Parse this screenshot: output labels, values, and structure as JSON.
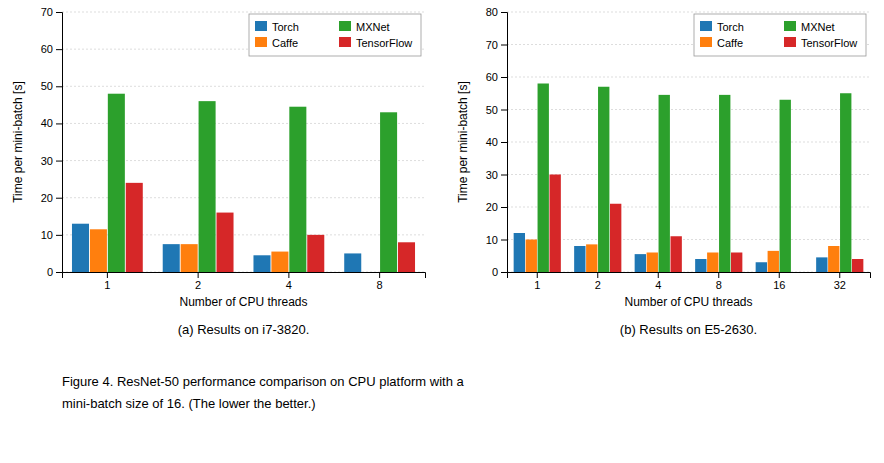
{
  "chart_data": [
    {
      "type": "bar",
      "title": "(a) Results on i7-3820.",
      "x_label": "Number of CPU threads",
      "y_label": "Time per mini-batch [s]",
      "categories": [
        "1",
        "2",
        "4",
        "8"
      ],
      "series": [
        {
          "name": "Torch",
          "values": [
            13,
            7.5,
            4.5,
            5.0
          ]
        },
        {
          "name": "Caffe",
          "values": [
            11.5,
            7.5,
            5.5,
            0.0
          ]
        },
        {
          "name": "MXNet",
          "values": [
            48,
            46,
            44.5,
            43
          ]
        },
        {
          "name": "TensorFlow",
          "values": [
            24,
            16,
            10,
            8
          ]
        }
      ],
      "ylim": [
        0,
        70
      ],
      "yticks": [
        0,
        10,
        20,
        30,
        40,
        50,
        60,
        70
      ],
      "grid": true,
      "legend": "upper right"
    },
    {
      "type": "bar",
      "title": "(b) Results on E5-2630.",
      "x_label": "Number of CPU threads",
      "y_label": "Time per mini-batch [s]",
      "categories": [
        "1",
        "2",
        "4",
        "8",
        "16",
        "32"
      ],
      "series": [
        {
          "name": "Torch",
          "values": [
            12,
            8,
            5.5,
            4,
            3,
            4.5
          ]
        },
        {
          "name": "Caffe",
          "values": [
            10,
            8.5,
            6,
            6,
            6.5,
            8
          ]
        },
        {
          "name": "MXNet",
          "values": [
            58,
            57,
            54.5,
            54.5,
            53,
            55
          ]
        },
        {
          "name": "TensorFlow",
          "values": [
            30,
            21,
            11,
            6,
            0.0,
            4
          ]
        }
      ],
      "ylim": [
        0,
        80
      ],
      "yticks": [
        0,
        10,
        20,
        30,
        40,
        50,
        60,
        70,
        80
      ],
      "grid": true,
      "legend": "upper right"
    }
  ],
  "caption": [
    "Figure 4.  ResNet-50 performance comparison on CPU platform with a",
    "mini-batch size of 16. (The lower the better.)"
  ]
}
